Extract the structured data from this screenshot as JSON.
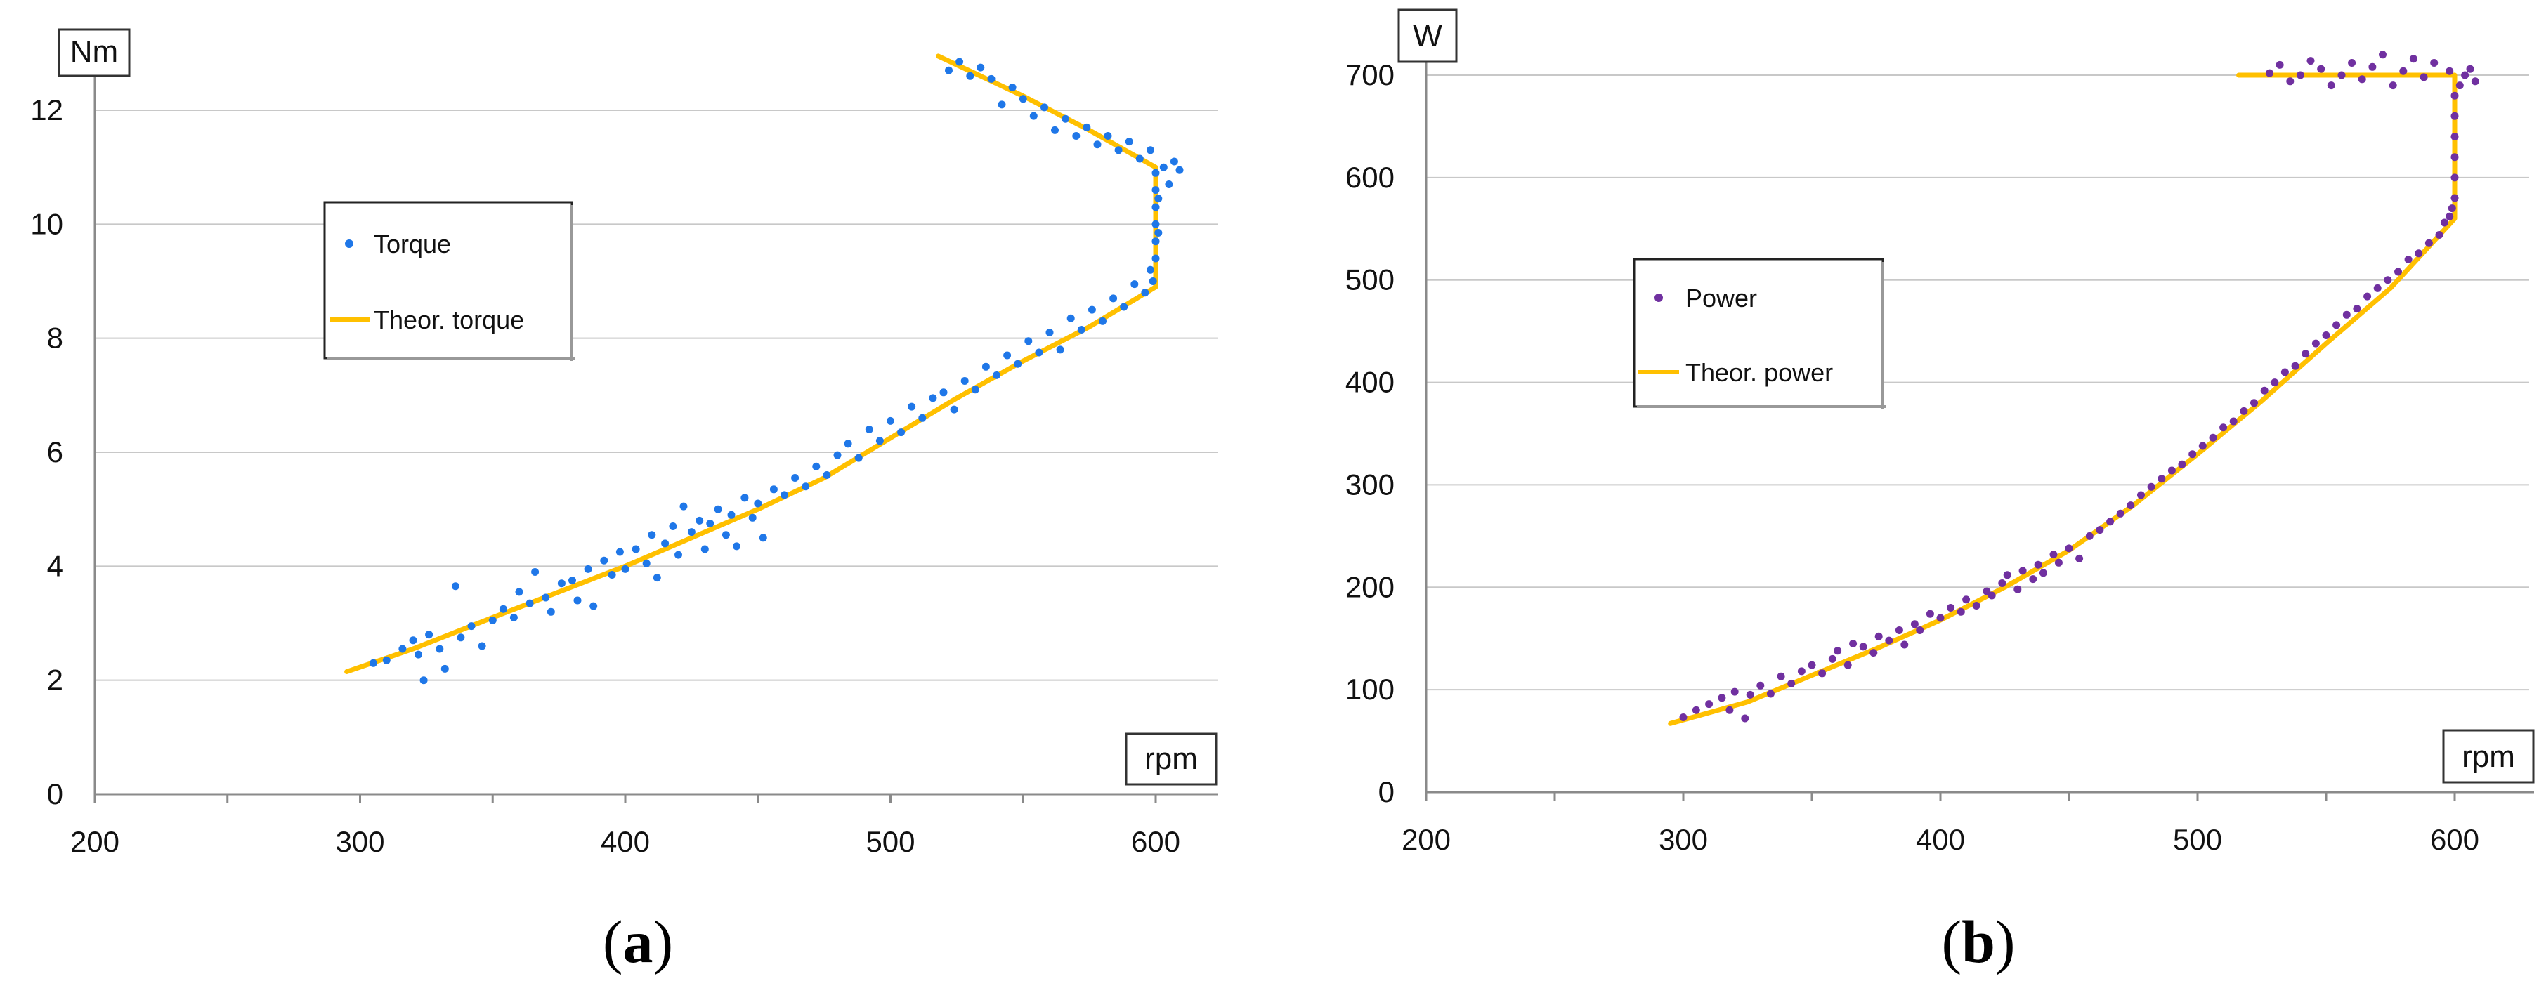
{
  "chart_data": [
    {
      "type": "scatter",
      "panel_label": "a",
      "y_unit": "Nm",
      "x_unit": "rpm",
      "xlim": [
        200,
        620
      ],
      "ylim": [
        0,
        13
      ],
      "x_ticks": [
        "200",
        "300",
        "400",
        "500",
        "600"
      ],
      "y_ticks": [
        "0",
        "2",
        "4",
        "6",
        "8",
        "10",
        "12"
      ],
      "grid": "horizontal",
      "legend_position": "upper-left-inside",
      "series": [
        {
          "name": "Torque",
          "kind": "scatter",
          "color": "#1f77e8",
          "points": [
            [
              305,
              2.3
            ],
            [
              310,
              2.35
            ],
            [
              316,
              2.55
            ],
            [
              320,
              2.7
            ],
            [
              322,
              2.45
            ],
            [
              324,
              2.0
            ],
            [
              326,
              2.8
            ],
            [
              330,
              2.55
            ],
            [
              332,
              2.2
            ],
            [
              336,
              3.65
            ],
            [
              338,
              2.75
            ],
            [
              342,
              2.95
            ],
            [
              346,
              2.6
            ],
            [
              350,
              3.05
            ],
            [
              354,
              3.25
            ],
            [
              358,
              3.1
            ],
            [
              360,
              3.55
            ],
            [
              364,
              3.35
            ],
            [
              366,
              3.9
            ],
            [
              370,
              3.45
            ],
            [
              372,
              3.2
            ],
            [
              376,
              3.7
            ],
            [
              380,
              3.75
            ],
            [
              382,
              3.4
            ],
            [
              386,
              3.95
            ],
            [
              388,
              3.3
            ],
            [
              392,
              4.1
            ],
            [
              395,
              3.85
            ],
            [
              398,
              4.25
            ],
            [
              400,
              3.95
            ],
            [
              404,
              4.3
            ],
            [
              408,
              4.05
            ],
            [
              410,
              4.55
            ],
            [
              412,
              3.8
            ],
            [
              415,
              4.4
            ],
            [
              418,
              4.7
            ],
            [
              420,
              4.2
            ],
            [
              422,
              5.05
            ],
            [
              425,
              4.6
            ],
            [
              428,
              4.8
            ],
            [
              430,
              4.3
            ],
            [
              432,
              4.75
            ],
            [
              435,
              5.0
            ],
            [
              438,
              4.55
            ],
            [
              440,
              4.9
            ],
            [
              442,
              4.35
            ],
            [
              445,
              5.2
            ],
            [
              448,
              4.85
            ],
            [
              450,
              5.1
            ],
            [
              452,
              4.5
            ],
            [
              456,
              5.35
            ],
            [
              460,
              5.25
            ],
            [
              464,
              5.55
            ],
            [
              468,
              5.4
            ],
            [
              472,
              5.75
            ],
            [
              476,
              5.6
            ],
            [
              480,
              5.95
            ],
            [
              484,
              6.15
            ],
            [
              488,
              5.9
            ],
            [
              492,
              6.4
            ],
            [
              496,
              6.2
            ],
            [
              500,
              6.55
            ],
            [
              504,
              6.35
            ],
            [
              508,
              6.8
            ],
            [
              512,
              6.6
            ],
            [
              516,
              6.95
            ],
            [
              520,
              7.05
            ],
            [
              524,
              6.75
            ],
            [
              528,
              7.25
            ],
            [
              532,
              7.1
            ],
            [
              536,
              7.5
            ],
            [
              540,
              7.35
            ],
            [
              544,
              7.7
            ],
            [
              548,
              7.55
            ],
            [
              552,
              7.95
            ],
            [
              556,
              7.75
            ],
            [
              560,
              8.1
            ],
            [
              564,
              7.8
            ],
            [
              568,
              8.35
            ],
            [
              572,
              8.15
            ],
            [
              576,
              8.5
            ],
            [
              580,
              8.3
            ],
            [
              584,
              8.7
            ],
            [
              588,
              8.55
            ],
            [
              592,
              8.95
            ],
            [
              596,
              8.8
            ],
            [
              598,
              9.2
            ],
            [
              599,
              9.0
            ],
            [
              600,
              9.4
            ],
            [
              600,
              9.7
            ],
            [
              600,
              10.0
            ],
            [
              600,
              10.3
            ],
            [
              600,
              10.6
            ],
            [
              600,
              10.9
            ],
            [
              601,
              10.45
            ],
            [
              601,
              9.85
            ],
            [
              603,
              11.0
            ],
            [
              605,
              10.7
            ],
            [
              607,
              11.1
            ],
            [
              609,
              10.95
            ],
            [
              598,
              11.3
            ],
            [
              594,
              11.15
            ],
            [
              590,
              11.45
            ],
            [
              586,
              11.3
            ],
            [
              582,
              11.55
            ],
            [
              578,
              11.4
            ],
            [
              574,
              11.7
            ],
            [
              570,
              11.55
            ],
            [
              566,
              11.85
            ],
            [
              562,
              11.65
            ],
            [
              558,
              12.05
            ],
            [
              554,
              11.9
            ],
            [
              550,
              12.2
            ],
            [
              546,
              12.4
            ],
            [
              542,
              12.1
            ],
            [
              538,
              12.55
            ],
            [
              534,
              12.75
            ],
            [
              530,
              12.6
            ],
            [
              526,
              12.85
            ],
            [
              522,
              12.7
            ]
          ]
        },
        {
          "name": "Theor. torque",
          "kind": "line",
          "color": "#ffc000",
          "points": [
            [
              295,
              2.15
            ],
            [
              320,
              2.55
            ],
            [
              350,
              3.1
            ],
            [
              375,
              3.55
            ],
            [
              400,
              4.0
            ],
            [
              425,
              4.5
            ],
            [
              450,
              5.0
            ],
            [
              475,
              5.55
            ],
            [
              500,
              6.25
            ],
            [
              525,
              6.95
            ],
            [
              550,
              7.6
            ],
            [
              575,
              8.2
            ],
            [
              600,
              8.9
            ],
            [
              600,
              11.0
            ],
            [
              575,
              11.65
            ],
            [
              550,
              12.25
            ],
            [
              518,
              12.95
            ]
          ]
        }
      ]
    },
    {
      "type": "scatter",
      "panel_label": "b",
      "y_unit": "W",
      "x_unit": "rpm",
      "xlim": [
        200,
        620
      ],
      "ylim": [
        0,
        750
      ],
      "x_ticks": [
        "200",
        "300",
        "400",
        "500",
        "600"
      ],
      "y_ticks": [
        "0",
        "100",
        "200",
        "300",
        "400",
        "500",
        "600",
        "700"
      ],
      "grid": "horizontal",
      "legend_position": "upper-left-inside",
      "series": [
        {
          "name": "Power",
          "kind": "scatter",
          "color": "#7030a0",
          "points": [
            [
              300,
              73
            ],
            [
              305,
              80
            ],
            [
              310,
              86
            ],
            [
              315,
              92
            ],
            [
              318,
              80
            ],
            [
              320,
              98
            ],
            [
              324,
              72
            ],
            [
              326,
              95
            ],
            [
              330,
              104
            ],
            [
              334,
              96
            ],
            [
              338,
              113
            ],
            [
              342,
              106
            ],
            [
              346,
              118
            ],
            [
              350,
              124
            ],
            [
              354,
              116
            ],
            [
              358,
              130
            ],
            [
              360,
              138
            ],
            [
              364,
              124
            ],
            [
              366,
              145
            ],
            [
              370,
              142
            ],
            [
              374,
              136
            ],
            [
              376,
              152
            ],
            [
              380,
              148
            ],
            [
              384,
              158
            ],
            [
              386,
              144
            ],
            [
              390,
              164
            ],
            [
              392,
              158
            ],
            [
              396,
              174
            ],
            [
              400,
              170
            ],
            [
              404,
              180
            ],
            [
              408,
              176
            ],
            [
              410,
              188
            ],
            [
              414,
              182
            ],
            [
              418,
              196
            ],
            [
              420,
              192
            ],
            [
              424,
              204
            ],
            [
              426,
              212
            ],
            [
              430,
              198
            ],
            [
              432,
              216
            ],
            [
              436,
              208
            ],
            [
              438,
              222
            ],
            [
              440,
              214
            ],
            [
              444,
              232
            ],
            [
              446,
              224
            ],
            [
              450,
              238
            ],
            [
              454,
              228
            ],
            [
              458,
              250
            ],
            [
              462,
              256
            ],
            [
              466,
              264
            ],
            [
              470,
              272
            ],
            [
              474,
              280
            ],
            [
              478,
              290
            ],
            [
              482,
              298
            ],
            [
              486,
              306
            ],
            [
              490,
              314
            ],
            [
              494,
              320
            ],
            [
              498,
              330
            ],
            [
              502,
              338
            ],
            [
              506,
              346
            ],
            [
              510,
              356
            ],
            [
              514,
              362
            ],
            [
              518,
              372
            ],
            [
              522,
              380
            ],
            [
              526,
              392
            ],
            [
              530,
              400
            ],
            [
              534,
              410
            ],
            [
              538,
              416
            ],
            [
              542,
              428
            ],
            [
              546,
              438
            ],
            [
              550,
              446
            ],
            [
              554,
              456
            ],
            [
              558,
              466
            ],
            [
              562,
              472
            ],
            [
              566,
              484
            ],
            [
              570,
              492
            ],
            [
              574,
              500
            ],
            [
              578,
              508
            ],
            [
              582,
              520
            ],
            [
              586,
              526
            ],
            [
              590,
              536
            ],
            [
              594,
              544
            ],
            [
              596,
              556
            ],
            [
              598,
              562
            ],
            [
              599,
              570
            ],
            [
              600,
              580
            ],
            [
              600,
              600
            ],
            [
              600,
              620
            ],
            [
              600,
              640
            ],
            [
              600,
              660
            ],
            [
              600,
              680
            ],
            [
              602,
              690
            ],
            [
              604,
              700
            ],
            [
              606,
              706
            ],
            [
              608,
              694
            ],
            [
              598,
              704
            ],
            [
              592,
              712
            ],
            [
              588,
              698
            ],
            [
              584,
              716
            ],
            [
              580,
              704
            ],
            [
              576,
              690
            ],
            [
              572,
              720
            ],
            [
              568,
              708
            ],
            [
              564,
              696
            ],
            [
              560,
              712
            ],
            [
              556,
              700
            ],
            [
              552,
              690
            ],
            [
              548,
              706
            ],
            [
              544,
              714
            ],
            [
              540,
              700
            ],
            [
              536,
              694
            ],
            [
              532,
              710
            ],
            [
              528,
              702
            ]
          ]
        },
        {
          "name": "Theor. power",
          "kind": "line",
          "color": "#ffc000",
          "points": [
            [
              295,
              67
            ],
            [
              325,
              88
            ],
            [
              350,
              114
            ],
            [
              375,
              140
            ],
            [
              400,
              168
            ],
            [
              425,
              200
            ],
            [
              450,
              236
            ],
            [
              475,
              280
            ],
            [
              500,
              330
            ],
            [
              525,
              382
            ],
            [
              550,
              438
            ],
            [
              575,
              492
            ],
            [
              600,
              560
            ],
            [
              600,
              700
            ],
            [
              516,
              700
            ]
          ]
        }
      ]
    }
  ]
}
